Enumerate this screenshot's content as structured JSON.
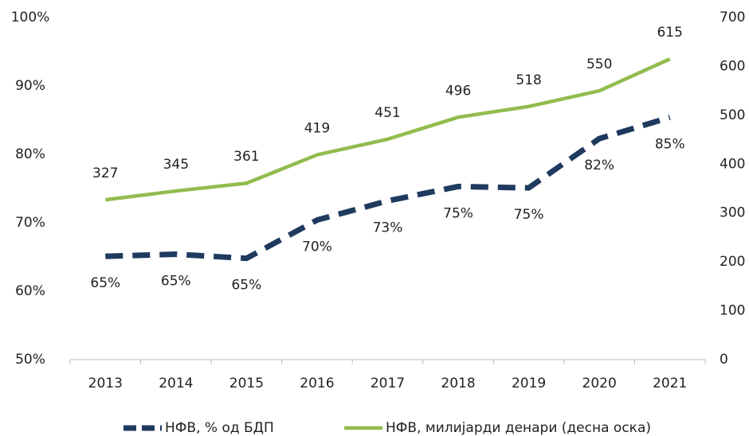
{
  "chart_data": {
    "type": "line",
    "categories": [
      "2013",
      "2014",
      "2015",
      "2016",
      "2017",
      "2018",
      "2019",
      "2020",
      "2021"
    ],
    "series": [
      {
        "name": "НФВ, % од БДП",
        "color": "#1f3a5f",
        "dashed": true,
        "values": [
          65.1,
          65.4,
          64.8,
          70.4,
          73.2,
          75.3,
          75.1,
          82.3,
          85.4
        ],
        "value_labels": [
          "65%",
          "65%",
          "65%",
          "70%",
          "73%",
          "75%",
          "75%",
          "82%",
          "85%"
        ]
      },
      {
        "name": "НФВ, милијарди денари (десна оска)",
        "color": "#92bc4e",
        "axis": "y2",
        "values": [
          327,
          345,
          361,
          419,
          451,
          496,
          518,
          550,
          615
        ]
      }
    ],
    "ylim": [
      50,
      100
    ],
    "yticks": [
      {
        "value": 50,
        "label": "50%"
      },
      {
        "value": 60,
        "label": "60%"
      },
      {
        "value": 70,
        "label": "70%"
      },
      {
        "value": 80,
        "label": "80%"
      },
      {
        "value": 90,
        "label": "90%"
      },
      {
        "value": 100,
        "label": "100%"
      }
    ],
    "y2lim": [
      0,
      700
    ],
    "y2ticks": [
      0,
      100,
      200,
      300,
      400,
      500,
      600,
      700
    ],
    "legend": "bottom"
  }
}
